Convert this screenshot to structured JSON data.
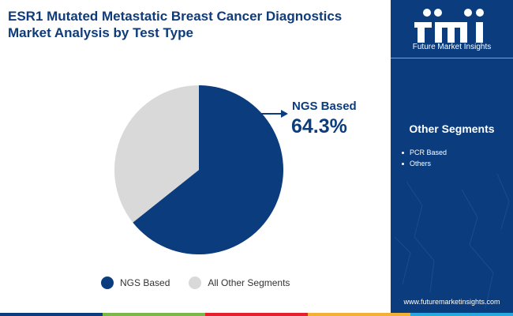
{
  "title_line1": "ESR1 Mutated Metastatic Breast Cancer Diagnostics",
  "title_line2": "Market Analysis by Test Type",
  "chart_data": {
    "type": "pie",
    "categories": [
      "NGS Based",
      "All Other Segments"
    ],
    "values": [
      64.3,
      35.7
    ],
    "unit": "%",
    "colors": [
      "#0b3d7e",
      "#d9d9d9"
    ],
    "legend_position": "bottom",
    "callout": {
      "label": "NGS Based",
      "value": "64.3%"
    }
  },
  "legend": [
    {
      "label": "NGS Based",
      "color": "#0b3d7e"
    },
    {
      "label": "All Other Segments",
      "color": "#d9d9d9"
    }
  ],
  "panel": {
    "logo_text": "Future Market Insights",
    "segments_title": "Other Segments",
    "segments": [
      "PCR Based",
      "Others"
    ],
    "website": "www.futuremarketinsights.com",
    "background": "#0b3d7e"
  },
  "bottom_bar_colors": [
    "#0b3d7e",
    "#7ab648",
    "#e5202e",
    "#f2b134",
    "#29a8e0"
  ]
}
